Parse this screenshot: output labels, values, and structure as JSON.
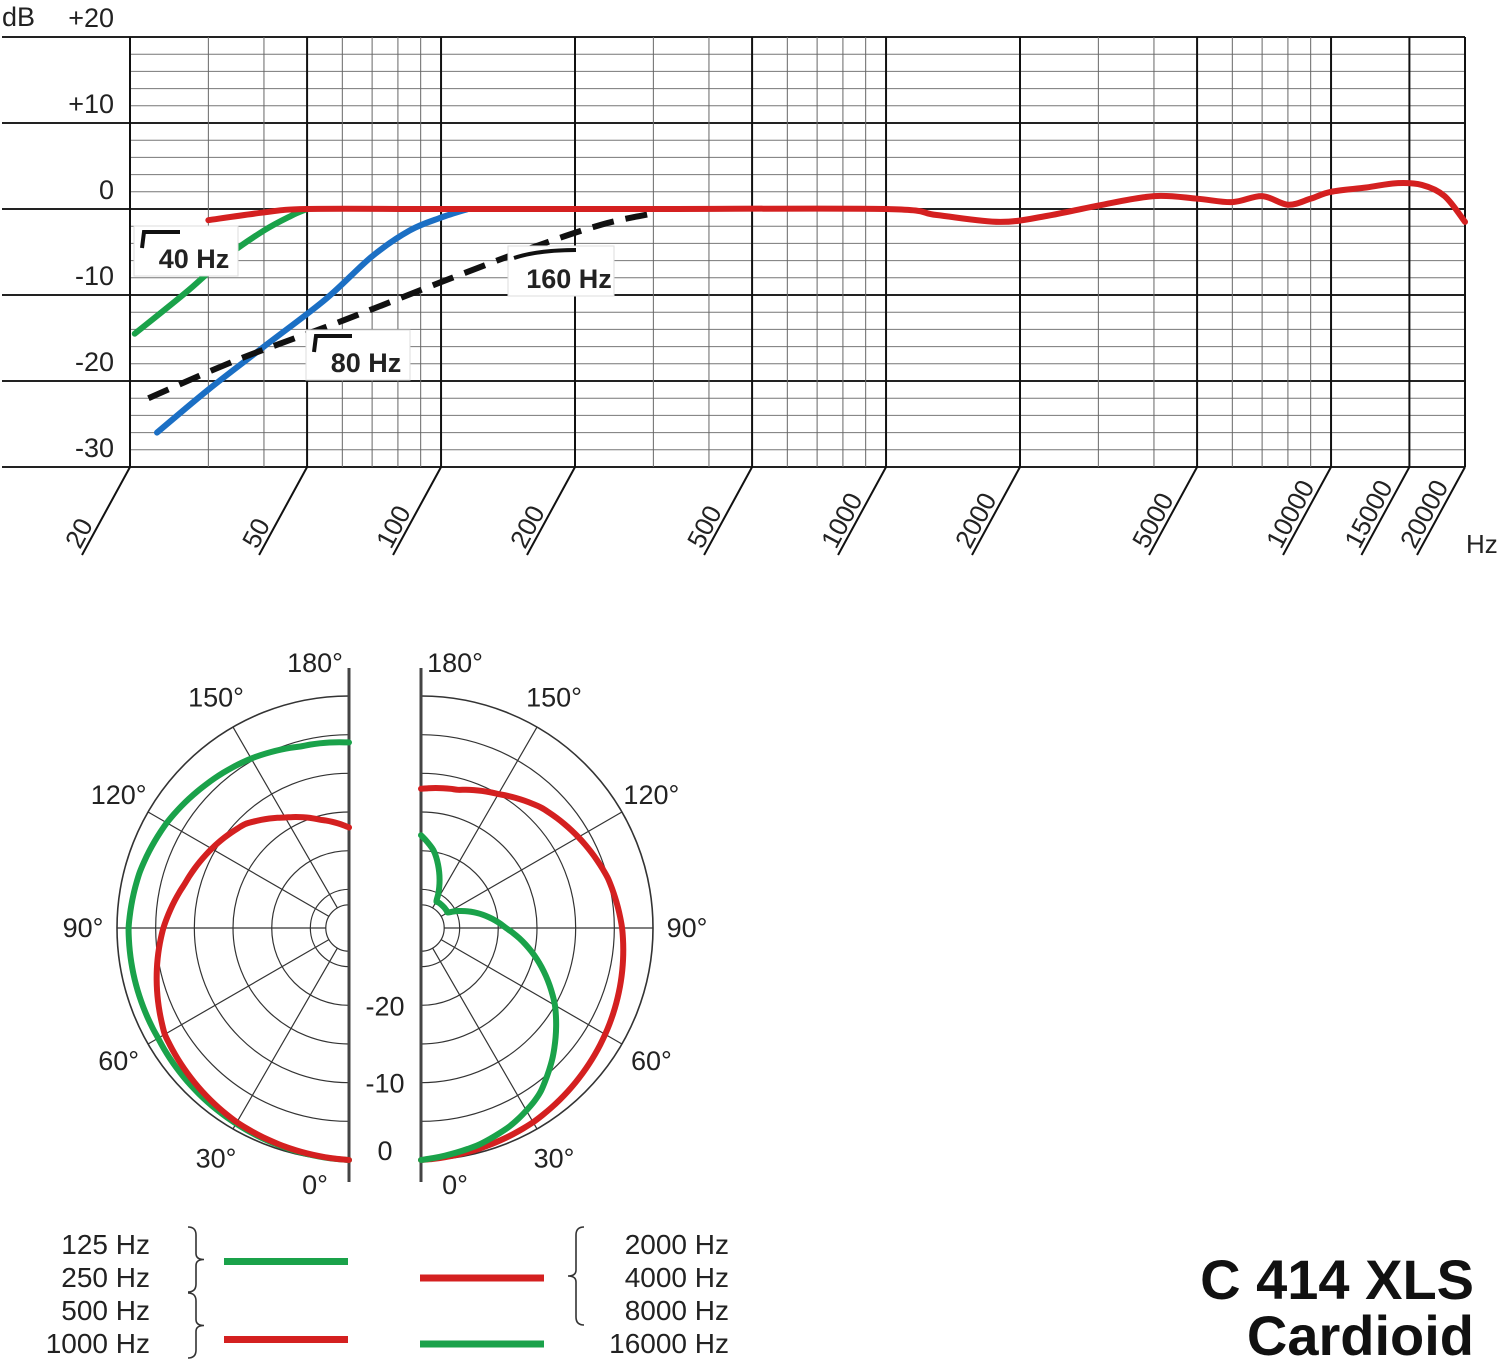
{
  "chart_data": [
    {
      "type": "line",
      "xscale": "log",
      "xlim": [
        20,
        20000
      ],
      "ylim": [
        -30,
        20
      ],
      "grid": true,
      "ylabel": "dB",
      "xlabel": "Hz",
      "x_ticks": [
        20,
        50,
        100,
        200,
        500,
        1000,
        2000,
        5000,
        10000,
        15000,
        20000
      ],
      "x_tick_labels": [
        "20",
        "50",
        "100",
        "200",
        "500",
        "1000",
        "2000",
        "5000",
        "10000",
        "15000",
        "20000"
      ],
      "y_ticks": [
        20,
        10,
        0,
        -10,
        -20,
        -30
      ],
      "y_tick_labels": [
        "+20",
        "+10",
        "0",
        "-10",
        "-20",
        "-30"
      ],
      "series": [
        {
          "color": "#1aa24a",
          "style": "solid",
          "x": [
            20.5,
            27,
            33,
            40,
            46,
            50
          ],
          "y": [
            -14.5,
            -9.5,
            -5.5,
            -2.5,
            -0.8,
            0
          ]
        },
        {
          "color": "#1b6fc4",
          "style": "solid",
          "x": [
            23,
            30,
            40,
            55,
            70,
            85,
            100,
            115
          ],
          "y": [
            -26,
            -21,
            -16,
            -10.5,
            -5.5,
            -2.5,
            -1,
            0
          ]
        },
        {
          "color": "#111111",
          "style": "dashed",
          "x": [
            22,
            35,
            60,
            100,
            160,
            230,
            300
          ],
          "y": [
            -22,
            -17.5,
            -13,
            -8.5,
            -4.5,
            -1.8,
            -0.5
          ]
        },
        {
          "color": "#d42020",
          "style": "solid",
          "x": [
            30,
            40,
            50,
            100,
            300,
            1000,
            1300,
            1800,
            2300,
            3000,
            4000,
            5000,
            6000,
            7000,
            8000,
            9000,
            10000,
            12000,
            14000,
            16000,
            18000,
            20000
          ],
          "y": [
            -1.3,
            -0.4,
            0,
            0,
            0,
            0,
            -0.7,
            -1.5,
            -0.8,
            0.4,
            1.5,
            1.2,
            0.8,
            1.5,
            0.5,
            1.2,
            2.0,
            2.5,
            3.0,
            2.8,
            1.5,
            -1.5
          ]
        }
      ],
      "annotations": [
        "40 Hz",
        "80 Hz",
        "160 Hz"
      ]
    },
    {
      "type": "polar",
      "angle_labels": [
        "0°",
        "30°",
        "60°",
        "90°",
        "120°",
        "150°",
        "180°"
      ],
      "radial_labels": [
        "0",
        "-10",
        "-20"
      ],
      "rings_db": [
        0,
        -5,
        -10,
        -15,
        -20,
        -25
      ],
      "series": [
        {
          "side": "left",
          "color": "#1aa24a",
          "frequencies": [
            "125 Hz",
            "250 Hz"
          ],
          "angles": [
            0,
            30,
            60,
            75,
            90,
            105,
            120,
            135,
            150,
            165,
            180
          ],
          "db": [
            0,
            -0.8,
            -1.5,
            -1.5,
            -1.5,
            -2,
            -2.8,
            -3.8,
            -4.7,
            -5.7,
            -6
          ]
        },
        {
          "side": "left",
          "color": "#d42020",
          "frequencies": [
            "500 Hz",
            "1000 Hz"
          ],
          "angles": [
            0,
            30,
            60,
            90,
            105,
            120,
            135,
            150,
            165,
            180
          ],
          "db": [
            0,
            -1,
            -2.5,
            -6,
            -8,
            -9.5,
            -11,
            -13.5,
            -15.5,
            -17
          ]
        },
        {
          "side": "right",
          "color": "#d42020",
          "frequencies": [
            "2000 Hz",
            "4000 Hz",
            "8000 Hz"
          ],
          "angles": [
            0,
            30,
            60,
            90,
            105,
            120,
            135,
            150,
            165,
            180
          ],
          "db": [
            0,
            -1,
            -2.5,
            -4,
            -5,
            -6.5,
            -8,
            -10,
            -11.5,
            -12
          ]
        },
        {
          "side": "right",
          "color": "#1aa24a",
          "frequencies": [
            "16000 Hz"
          ],
          "angles": [
            0,
            15,
            25,
            35,
            45,
            60,
            90,
            120,
            150,
            170,
            180
          ],
          "db": [
            0,
            -1,
            -2,
            -3.5,
            -6,
            -10,
            -19,
            -26,
            -26,
            -20,
            -18
          ]
        }
      ]
    }
  ],
  "legend_left": [
    {
      "labels": [
        "125 Hz",
        "250 Hz"
      ],
      "color": "#1aa24a"
    },
    {
      "labels": [
        "500 Hz",
        "1000 Hz"
      ],
      "color": "#d42020"
    }
  ],
  "legend_right": [
    {
      "labels": [
        "2000 Hz",
        "4000 Hz",
        "8000 Hz"
      ],
      "color": "#d42020"
    },
    {
      "labels": [
        "16000 Hz"
      ],
      "color": "#1aa24a"
    }
  ],
  "title_line1": "C 414 XLS",
  "title_line2": "Cardioid"
}
